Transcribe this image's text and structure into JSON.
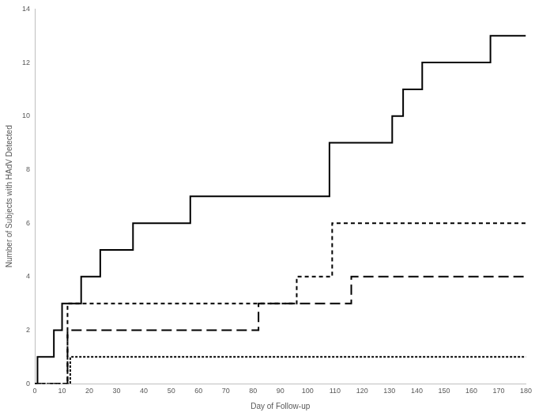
{
  "chart_data": {
    "type": "line",
    "x_label": "Day of Follow-up",
    "y_label": "Number of Subjects with HAdV Detected",
    "xlim": [
      0,
      180
    ],
    "xticks": [
      0,
      10,
      20,
      30,
      40,
      50,
      60,
      70,
      80,
      90,
      100,
      110,
      120,
      130,
      140,
      150,
      160,
      170,
      180
    ],
    "ylim": [
      0,
      14
    ],
    "yticks": [
      0,
      2,
      4,
      6,
      8,
      10,
      12,
      14
    ],
    "grid": false,
    "series": [
      {
        "color": "#000000",
        "line_style": "solid",
        "x": [
          0,
          1,
          7,
          10,
          17,
          24,
          36,
          57,
          108,
          131,
          135,
          142,
          167,
          180
        ],
        "values": [
          0,
          1,
          2,
          3,
          4,
          5,
          6,
          7,
          9,
          10,
          11,
          12,
          13,
          13
        ]
      },
      {
        "color": "#000000",
        "line_style": "dashed",
        "x": [
          0,
          12,
          96,
          109,
          180
        ],
        "values": [
          0,
          3,
          4,
          6,
          6
        ]
      },
      {
        "color": "#000000",
        "line_style": "long_dashed",
        "x": [
          0,
          12,
          82,
          116,
          180
        ],
        "values": [
          0,
          2,
          3,
          4,
          4
        ]
      },
      {
        "color": "#000000",
        "line_style": "dotted",
        "x": [
          0,
          13,
          180
        ],
        "values": [
          0,
          1,
          1
        ]
      }
    ]
  }
}
